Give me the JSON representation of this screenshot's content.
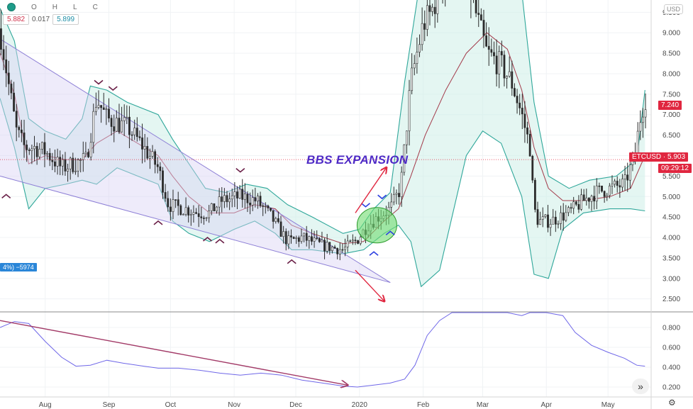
{
  "header": {
    "labels": [
      "O",
      "H",
      "L",
      "C"
    ],
    "value_red": "5.882",
    "change": "0.017",
    "value_teal": "5.899"
  },
  "currency": "USD",
  "tags": {
    "last_price": "7.240",
    "symbol_price": "ETCUSD · 5.903",
    "countdown": "09:29:12",
    "position": "4%) −5974"
  },
  "annotation": "BBS EXPANSION",
  "colors": {
    "up": "#1f8f5c",
    "down": "#d0314a",
    "band_line": "#2fa79a",
    "band_fill": "#cdeee8",
    "basis": "#a33a4a",
    "wedge": "#8d7fd6",
    "oscillator": "#6f67e8",
    "arrow": "#e0263f",
    "marker": "#6a1f47",
    "marker_blue": "#2b3fe0",
    "highlight": "#6fdc6f"
  },
  "chart_data": {
    "type": "candlestick",
    "price_axis": {
      "ticks": [
        "9.500",
        "9.000",
        "8.500",
        "8.000",
        "7.500",
        "7.000",
        "6.500",
        "6.000",
        "5.500",
        "5.000",
        "4.500",
        "4.000",
        "3.500",
        "3.000",
        "2.500"
      ],
      "ylim": [
        2.2,
        9.8
      ]
    },
    "oscillator_axis": {
      "ticks": [
        "0.800",
        "0.600",
        "0.400",
        "0.200"
      ],
      "ylim": [
        0.1,
        0.95
      ]
    },
    "x_ticks": [
      "Aug",
      "Sep",
      "Oct",
      "Nov",
      "Dec",
      "2020",
      "Feb",
      "Mar",
      "Apr",
      "May"
    ],
    "x_range_days": [
      -22,
      295
    ],
    "price_path": [
      [
        -22,
        9.1
      ],
      [
        -18,
        7.8
      ],
      [
        -14,
        6.6
      ],
      [
        -10,
        6.2
      ],
      [
        -5,
        6.2
      ],
      [
        0,
        6.1
      ],
      [
        8,
        5.7
      ],
      [
        20,
        5.9
      ],
      [
        25,
        7.4
      ],
      [
        30,
        6.9
      ],
      [
        40,
        6.7
      ],
      [
        48,
        6.2
      ],
      [
        55,
        5.7
      ],
      [
        60,
        4.8
      ],
      [
        68,
        4.7
      ],
      [
        75,
        4.6
      ],
      [
        80,
        4.6
      ],
      [
        86,
        4.9
      ],
      [
        95,
        5.0
      ],
      [
        103,
        4.9
      ],
      [
        110,
        4.5
      ],
      [
        118,
        3.9
      ],
      [
        125,
        4.0
      ],
      [
        135,
        3.8
      ],
      [
        145,
        3.7
      ],
      [
        152,
        3.95
      ],
      [
        157,
        4.3
      ],
      [
        162,
        4.5
      ],
      [
        168,
        4.7
      ],
      [
        173,
        5.2
      ],
      [
        178,
        7.8
      ],
      [
        184,
        9.2
      ],
      [
        188,
        9.5
      ],
      [
        195,
        10.5
      ],
      [
        205,
        10.5
      ],
      [
        210,
        9.4
      ],
      [
        215,
        8.5
      ],
      [
        222,
        8.2
      ],
      [
        227,
        7.8
      ],
      [
        232,
        7.0
      ],
      [
        236,
        6.2
      ],
      [
        238,
        4.7
      ],
      [
        240,
        4.4
      ],
      [
        246,
        4.4
      ],
      [
        255,
        4.6
      ],
      [
        262,
        4.9
      ],
      [
        268,
        5.1
      ],
      [
        275,
        5.2
      ],
      [
        282,
        5.3
      ],
      [
        287,
        6.0
      ],
      [
        290,
        7.0
      ],
      [
        292,
        7.4
      ]
    ],
    "bollinger": {
      "upper": [
        [
          -22,
          9.6
        ],
        [
          -15,
          8.8
        ],
        [
          -8,
          6.9
        ],
        [
          0,
          6.6
        ],
        [
          10,
          6.4
        ],
        [
          18,
          6.9
        ],
        [
          22,
          7.7
        ],
        [
          30,
          7.6
        ],
        [
          40,
          7.3
        ],
        [
          55,
          7.0
        ],
        [
          62,
          6.4
        ],
        [
          70,
          5.8
        ],
        [
          78,
          5.2
        ],
        [
          88,
          5.1
        ],
        [
          98,
          5.3
        ],
        [
          108,
          5.2
        ],
        [
          118,
          4.8
        ],
        [
          130,
          4.5
        ],
        [
          145,
          4.1
        ],
        [
          153,
          4.2
        ],
        [
          160,
          4.7
        ],
        [
          168,
          5.1
        ],
        [
          175,
          7.8
        ],
        [
          182,
          10.3
        ],
        [
          200,
          10.9
        ],
        [
          210,
          10.6
        ],
        [
          222,
          10.5
        ],
        [
          232,
          10.0
        ],
        [
          238,
          7.3
        ],
        [
          245,
          5.5
        ],
        [
          255,
          5.2
        ],
        [
          265,
          5.4
        ],
        [
          278,
          5.5
        ],
        [
          288,
          5.9
        ],
        [
          292,
          7.6
        ]
      ],
      "lower": [
        [
          -22,
          7.4
        ],
        [
          -15,
          6.2
        ],
        [
          -8,
          4.7
        ],
        [
          0,
          5.2
        ],
        [
          10,
          5.3
        ],
        [
          18,
          5.4
        ],
        [
          25,
          5.3
        ],
        [
          35,
          5.7
        ],
        [
          45,
          5.5
        ],
        [
          55,
          5.3
        ],
        [
          62,
          4.4
        ],
        [
          70,
          4.1
        ],
        [
          80,
          3.9
        ],
        [
          92,
          4.2
        ],
        [
          102,
          4.4
        ],
        [
          112,
          4.1
        ],
        [
          120,
          3.7
        ],
        [
          130,
          3.7
        ],
        [
          145,
          3.6
        ],
        [
          155,
          3.7
        ],
        [
          165,
          4.1
        ],
        [
          172,
          4.3
        ],
        [
          178,
          3.9
        ],
        [
          183,
          2.8
        ],
        [
          192,
          3.2
        ],
        [
          205,
          6.0
        ],
        [
          213,
          6.6
        ],
        [
          222,
          6.3
        ],
        [
          232,
          5.0
        ],
        [
          238,
          3.1
        ],
        [
          245,
          3.0
        ],
        [
          252,
          4.2
        ],
        [
          262,
          4.6
        ],
        [
          275,
          4.7
        ],
        [
          285,
          4.7
        ],
        [
          292,
          4.65
        ]
      ],
      "basis": [
        [
          -22,
          8.5
        ],
        [
          -15,
          7.5
        ],
        [
          -8,
          5.8
        ],
        [
          0,
          6.0
        ],
        [
          10,
          5.9
        ],
        [
          18,
          5.9
        ],
        [
          25,
          6.3
        ],
        [
          35,
          6.6
        ],
        [
          45,
          6.3
        ],
        [
          55,
          6.0
        ],
        [
          62,
          5.5
        ],
        [
          70,
          5.0
        ],
        [
          80,
          4.6
        ],
        [
          92,
          4.6
        ],
        [
          102,
          4.8
        ],
        [
          112,
          4.7
        ],
        [
          120,
          4.3
        ],
        [
          130,
          4.1
        ],
        [
          145,
          3.85
        ],
        [
          155,
          3.9
        ],
        [
          165,
          4.4
        ],
        [
          172,
          4.7
        ],
        [
          178,
          5.5
        ],
        [
          185,
          6.5
        ],
        [
          195,
          7.6
        ],
        [
          205,
          8.5
        ],
        [
          215,
          9.0
        ],
        [
          225,
          8.6
        ],
        [
          232,
          7.6
        ],
        [
          238,
          6.2
        ],
        [
          245,
          5.2
        ],
        [
          252,
          4.9
        ],
        [
          262,
          4.9
        ],
        [
          275,
          5.0
        ],
        [
          285,
          5.2
        ],
        [
          292,
          6.0
        ]
      ]
    },
    "wedge": {
      "upper": [
        [
          -22,
          8.85
        ],
        [
          168,
          2.9
        ]
      ],
      "lower": [
        [
          -22,
          5.5
        ],
        [
          168,
          2.9
        ]
      ]
    },
    "oscillator": [
      [
        -22,
        0.8
      ],
      [
        -15,
        0.86
      ],
      [
        -8,
        0.84
      ],
      [
        0,
        0.66
      ],
      [
        8,
        0.5
      ],
      [
        15,
        0.41
      ],
      [
        22,
        0.42
      ],
      [
        30,
        0.47
      ],
      [
        38,
        0.44
      ],
      [
        48,
        0.41
      ],
      [
        55,
        0.39
      ],
      [
        65,
        0.39
      ],
      [
        75,
        0.37
      ],
      [
        85,
        0.34
      ],
      [
        95,
        0.32
      ],
      [
        105,
        0.34
      ],
      [
        115,
        0.32
      ],
      [
        125,
        0.27
      ],
      [
        135,
        0.24
      ],
      [
        145,
        0.21
      ],
      [
        152,
        0.2
      ],
      [
        160,
        0.22
      ],
      [
        168,
        0.24
      ],
      [
        175,
        0.28
      ],
      [
        180,
        0.42
      ],
      [
        186,
        0.72
      ],
      [
        192,
        0.87
      ],
      [
        198,
        0.95
      ],
      [
        206,
        0.95
      ],
      [
        215,
        0.95
      ],
      [
        225,
        0.95
      ],
      [
        232,
        0.92
      ],
      [
        236,
        0.95
      ],
      [
        244,
        0.95
      ],
      [
        252,
        0.92
      ],
      [
        258,
        0.75
      ],
      [
        266,
        0.62
      ],
      [
        274,
        0.55
      ],
      [
        282,
        0.49
      ],
      [
        288,
        0.42
      ],
      [
        292,
        0.41
      ]
    ],
    "oscillator_trend": [
      [
        -22,
        0.87
      ],
      [
        147,
        0.22
      ]
    ]
  }
}
